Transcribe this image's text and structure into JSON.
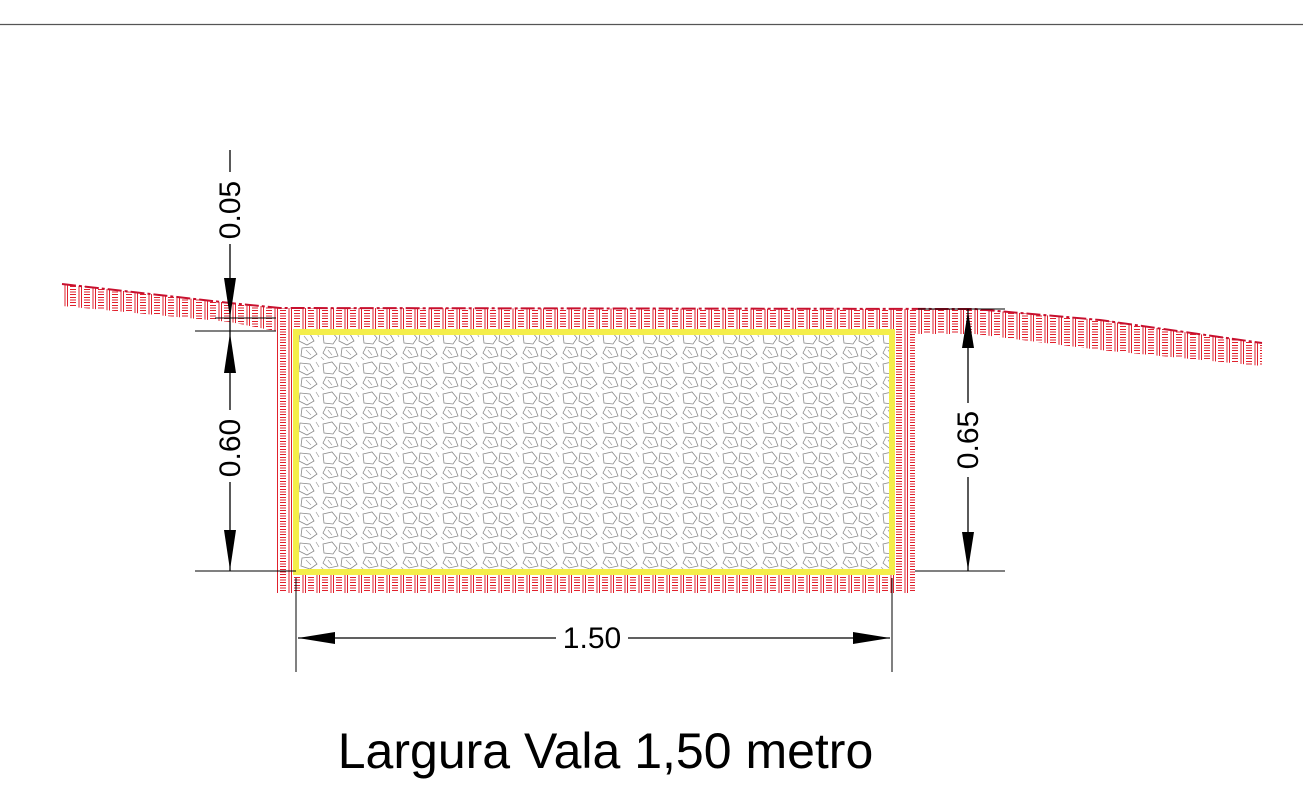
{
  "diagram": {
    "dimensions": {
      "surface_layer": "0.05",
      "trench_depth": "0.60",
      "total_depth": "0.65",
      "trench_width": "1.50"
    },
    "caption": "Largura Vala 1,50 metro",
    "colors": {
      "trench_border": "#f4ee4a",
      "soil_hatch": "#e0202c",
      "ground_line": "#c8102e",
      "fill_pattern": "#8a8a8a",
      "dimension_lines": "#000000"
    }
  }
}
